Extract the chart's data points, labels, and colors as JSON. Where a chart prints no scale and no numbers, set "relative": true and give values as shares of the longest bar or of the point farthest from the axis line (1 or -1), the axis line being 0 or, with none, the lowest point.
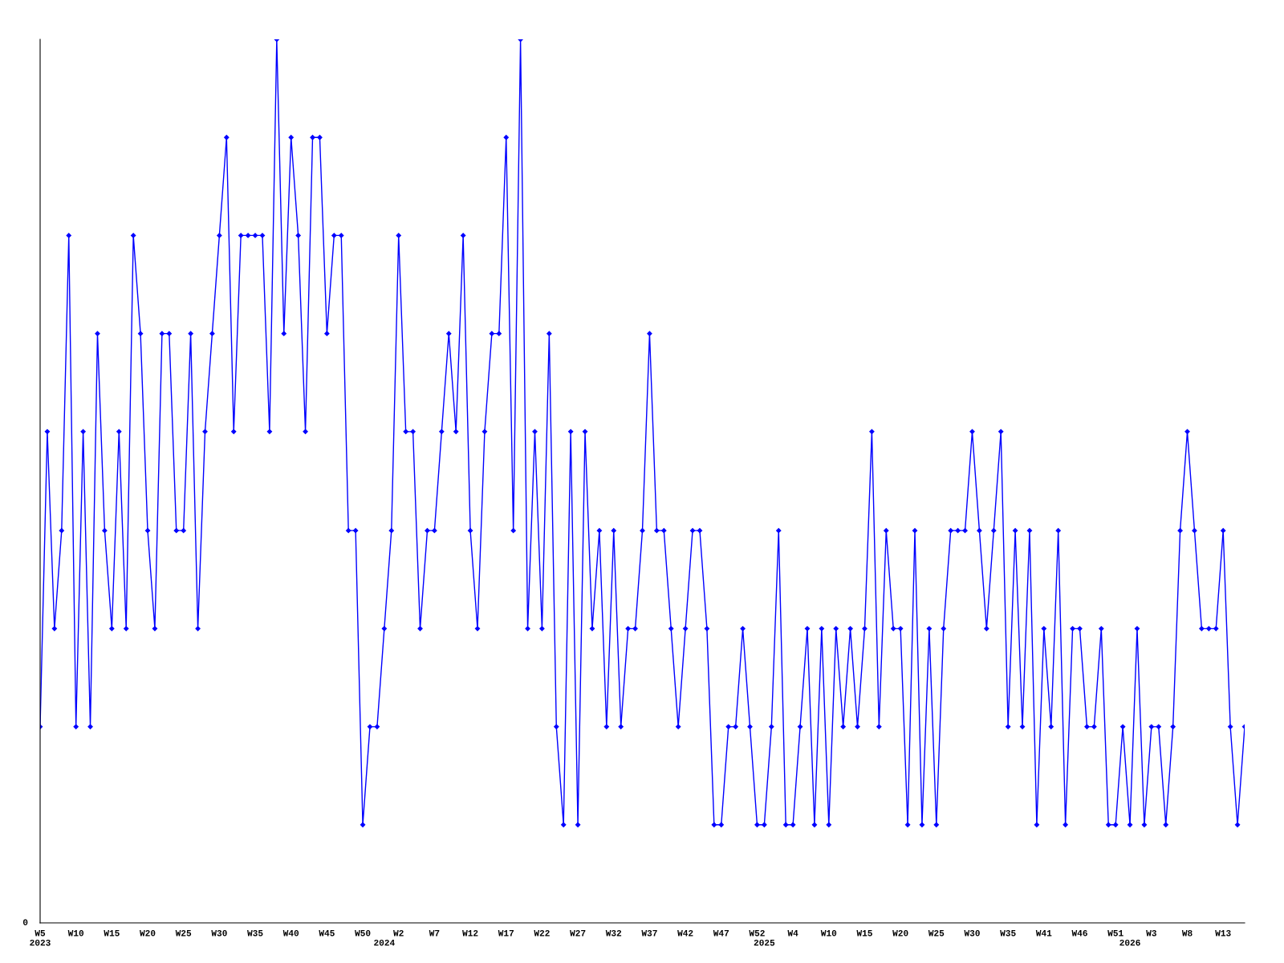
{
  "chart_data": {
    "type": "line",
    "relative": true,
    "marker": "diamond",
    "line_style": "solid",
    "grid": false,
    "legend": false,
    "annotations": [
      "0"
    ],
    "categories": [
      "W5\n2023",
      null,
      null,
      null,
      null,
      "W10",
      null,
      null,
      null,
      null,
      "W15",
      null,
      null,
      null,
      null,
      "W20",
      null,
      null,
      null,
      null,
      "W25",
      null,
      null,
      null,
      null,
      "W30",
      null,
      null,
      null,
      null,
      "W35",
      null,
      null,
      null,
      null,
      "W40",
      null,
      null,
      null,
      null,
      "W45",
      null,
      null,
      null,
      null,
      "W50",
      null,
      null,
      "\n2024",
      null,
      "W2",
      null,
      null,
      null,
      null,
      "W7",
      null,
      null,
      null,
      null,
      "W12",
      null,
      null,
      null,
      null,
      "W17",
      null,
      null,
      null,
      null,
      "W22",
      null,
      null,
      null,
      null,
      "W27",
      null,
      null,
      null,
      null,
      "W32",
      null,
      null,
      null,
      null,
      "W37",
      null,
      null,
      null,
      null,
      "W42",
      null,
      null,
      null,
      null,
      "W47",
      null,
      null,
      null,
      null,
      "W52",
      "\n2025",
      null,
      null,
      null,
      "W4",
      null,
      null,
      null,
      null,
      "W10",
      null,
      null,
      null,
      null,
      "W15",
      null,
      null,
      null,
      null,
      "W20",
      null,
      null,
      null,
      null,
      "W25",
      null,
      null,
      null,
      null,
      "W30",
      null,
      null,
      null,
      null,
      "W35",
      null,
      null,
      null,
      null,
      "W41",
      null,
      null,
      null,
      null,
      "W46",
      null,
      null,
      null,
      null,
      "W51",
      null,
      "\n2026",
      null,
      null,
      "W3",
      null,
      null,
      null,
      null,
      "W8",
      null,
      null,
      null,
      null,
      "W13",
      null,
      null,
      null
    ],
    "series": [
      {
        "color": "#0000ff",
        "values": [
          0.222,
          0.556,
          0.333,
          0.444,
          0.778,
          0.222,
          0.556,
          0.222,
          0.667,
          0.444,
          0.333,
          0.556,
          0.333,
          0.778,
          0.667,
          0.444,
          0.333,
          0.667,
          0.667,
          0.444,
          0.444,
          0.667,
          0.333,
          0.556,
          0.667,
          0.778,
          0.889,
          0.556,
          0.778,
          0.778,
          0.778,
          0.778,
          0.556,
          1,
          0.667,
          0.889,
          0.778,
          0.556,
          0.889,
          0.889,
          0.667,
          0.778,
          0.778,
          0.444,
          0.444,
          0.111,
          0.222,
          0.222,
          0.333,
          0.444,
          0.778,
          0.556,
          0.556,
          0.333,
          0.444,
          0.444,
          0.556,
          0.667,
          0.556,
          0.778,
          0.444,
          0.333,
          0.556,
          0.667,
          0.667,
          0.889,
          0.444,
          1,
          0.333,
          0.556,
          0.333,
          0.667,
          0.222,
          0.111,
          0.556,
          0.111,
          0.556,
          0.333,
          0.444,
          0.222,
          0.444,
          0.222,
          0.333,
          0.333,
          0.444,
          0.667,
          0.444,
          0.444,
          0.333,
          0.222,
          0.333,
          0.444,
          0.444,
          0.333,
          0.111,
          0.111,
          0.222,
          0.222,
          0.333,
          0.222,
          0.111,
          0.111,
          0.222,
          0.444,
          0.111,
          0.111,
          0.222,
          0.333,
          0.111,
          0.333,
          0.111,
          0.333,
          0.222,
          0.333,
          0.222,
          0.333,
          0.556,
          0.222,
          0.444,
          0.333,
          0.333,
          0.111,
          0.444,
          0.111,
          0.333,
          0.111,
          0.333,
          0.444,
          0.444,
          0.444,
          0.556,
          0.444,
          0.333,
          0.444,
          0.556,
          0.222,
          0.444,
          0.222,
          0.444,
          0.111,
          0.333,
          0.222,
          0.444,
          0.111,
          0.333,
          0.333,
          0.222,
          0.222,
          0.333,
          0.111,
          0.111,
          0.222,
          0.111,
          0.333,
          0.111,
          0.222,
          0.222,
          0.111,
          0.222,
          0.444,
          0.556,
          0.444,
          0.333,
          0.333,
          0.333,
          0.444,
          0.222,
          0.111,
          0.222
        ]
      }
    ]
  }
}
